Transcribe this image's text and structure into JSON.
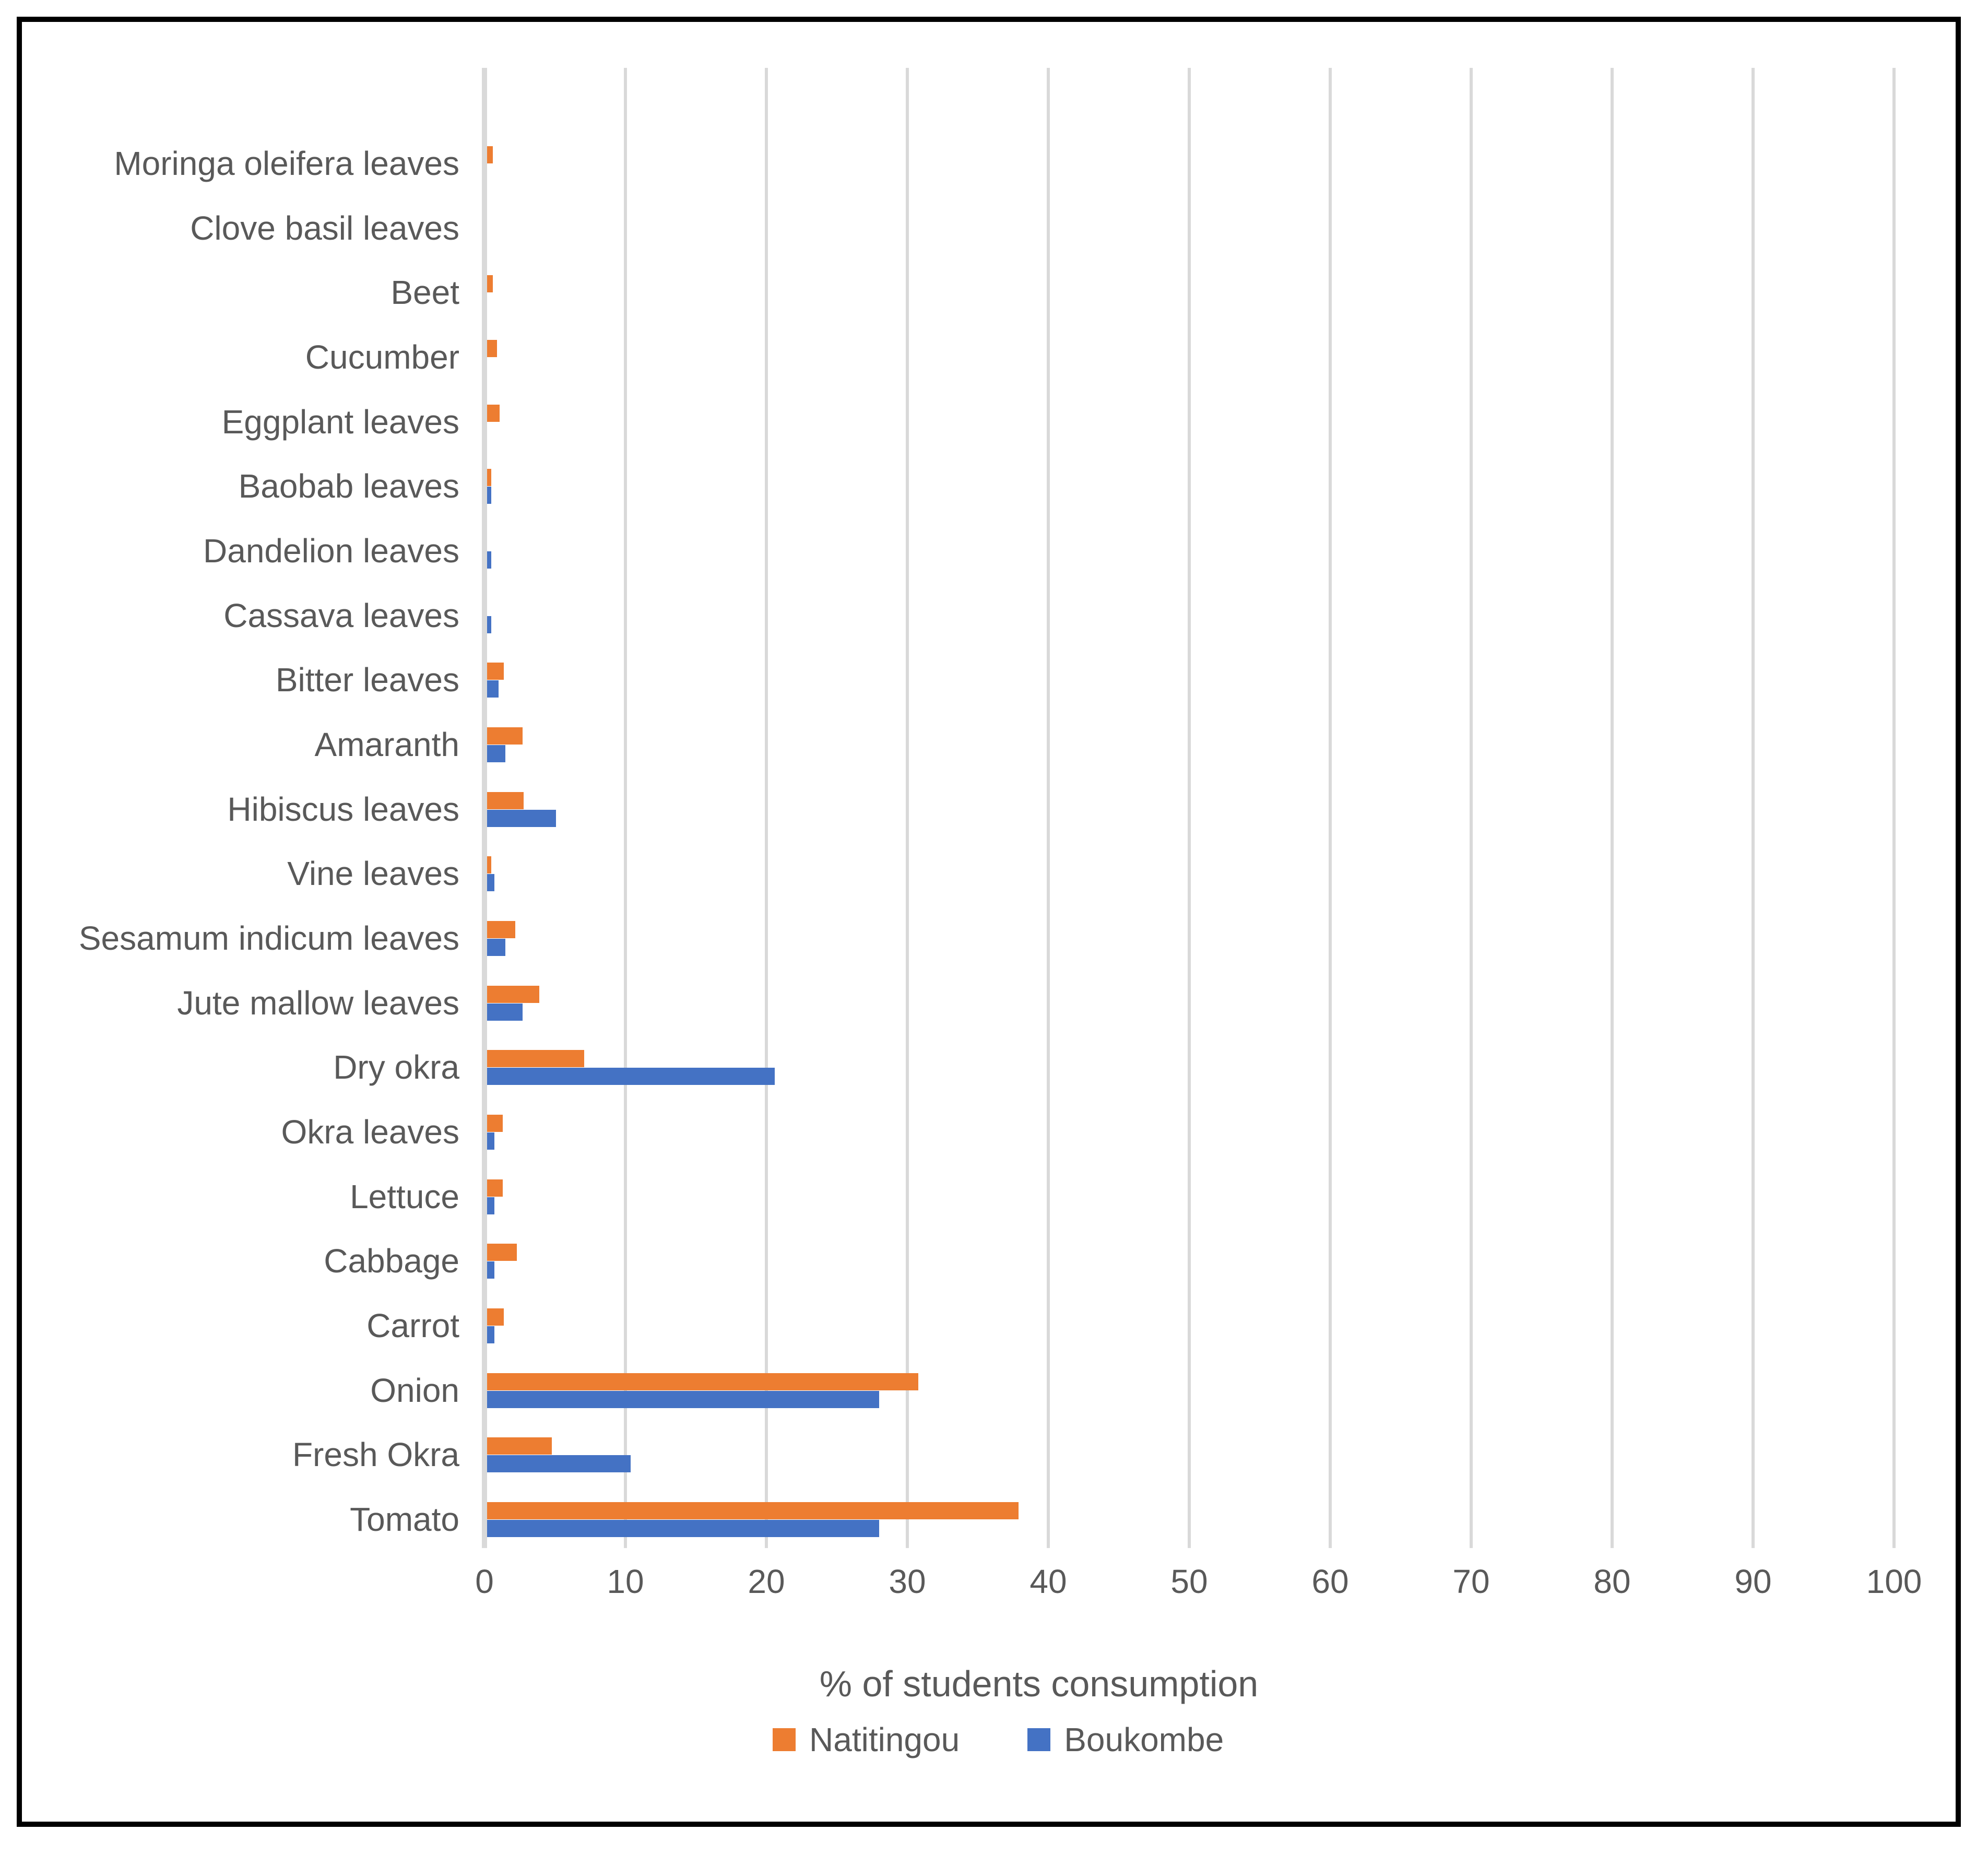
{
  "chart_data": {
    "type": "bar",
    "orientation": "horizontal",
    "xlabel": "% of students consumption",
    "xlim": [
      0,
      100
    ],
    "xticks": [
      0,
      10,
      20,
      30,
      40,
      50,
      60,
      70,
      80,
      90,
      100
    ],
    "grid": "vertical",
    "legend_position": "bottom",
    "categories": [
      "Moringa oleifera leaves",
      "Clove basil leaves",
      "Beet",
      "Cucumber",
      "Eggplant leaves",
      "Baobab leaves",
      "Dandelion leaves",
      "Cassava leaves",
      "Bitter leaves",
      "Amaranth",
      "Hibiscus leaves",
      "Vine leaves",
      "Sesamum indicum leaves",
      "Jute mallow leaves",
      "Dry okra",
      "Okra leaves",
      "Lettuce",
      "Cabbage",
      "Carrot",
      "Onion",
      "Fresh Okra",
      "Tomato"
    ],
    "series": [
      {
        "name": "Natitingou",
        "color": "#ED7D31",
        "values": [
          0.4,
          0,
          0.4,
          0.7,
          0.9,
          0.3,
          0,
          0,
          1.2,
          2.5,
          2.6,
          0.3,
          2.0,
          3.7,
          6.9,
          1.1,
          1.1,
          2.1,
          1.2,
          30.6,
          4.6,
          37.7
        ]
      },
      {
        "name": "Boukombe",
        "color": "#4472C4",
        "values": [
          0,
          0,
          0,
          0,
          0,
          0.3,
          0.3,
          0.3,
          0.8,
          1.3,
          4.9,
          0.5,
          1.3,
          2.5,
          20.4,
          0.5,
          0.5,
          0.5,
          0.5,
          27.8,
          10.2,
          27.8
        ]
      }
    ]
  },
  "colors": {
    "text": "#595959",
    "gridline": "#D9D9D9",
    "border": "#000000",
    "background": "#FFFFFF"
  }
}
